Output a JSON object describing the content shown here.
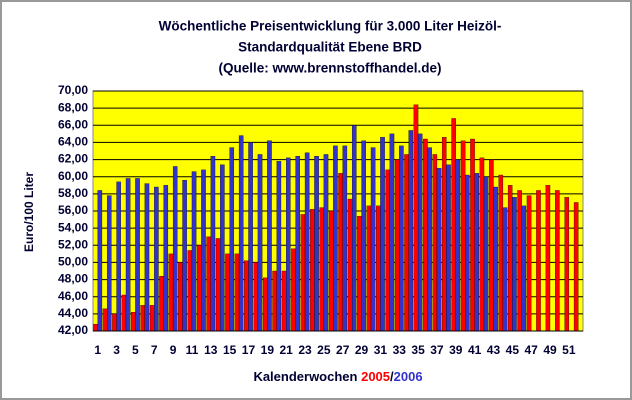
{
  "chart_data": {
    "type": "bar",
    "title_lines": [
      "Wöchentliche Preisentwicklung für 3.000 Liter Heizöl-",
      "Standardqualität Ebene BRD",
      "(Quelle: www.brennstoffhandel.de)"
    ],
    "ylabel": "Euro/100 Liter",
    "xlabel": "Kalenderwochen",
    "series_separator": "/",
    "categories": [
      "1",
      null,
      "3",
      null,
      "5",
      null,
      "7",
      null,
      "9",
      null,
      "11",
      null,
      "13",
      null,
      "15",
      null,
      "17",
      null,
      "19",
      null,
      "21",
      null,
      "23",
      null,
      "25",
      null,
      "27",
      null,
      "29",
      null,
      "31",
      null,
      "33",
      null,
      "35",
      null,
      "37",
      null,
      "39",
      null,
      "41",
      null,
      "43",
      null,
      "45",
      null,
      "47",
      null,
      "49",
      null,
      "51",
      null
    ],
    "series": [
      {
        "name": "2005",
        "color": "#ff0000",
        "values": [
          42.8,
          44.6,
          44.0,
          46.2,
          44.2,
          45.0,
          45.0,
          48.4,
          51.0,
          50.0,
          51.4,
          52.0,
          53.0,
          52.8,
          51.0,
          51.0,
          50.2,
          50.0,
          48.2,
          49.0,
          49.0,
          51.6,
          55.6,
          56.2,
          56.4,
          56.0,
          60.4,
          57.4,
          55.4,
          56.6,
          56.6,
          60.8,
          62.0,
          62.6,
          68.4,
          64.4,
          62.6,
          64.6,
          66.8,
          64.2,
          64.4,
          62.2,
          62.0,
          60.2,
          59.0,
          58.4,
          57.8,
          58.4,
          59.0,
          58.4,
          57.6,
          57.0
        ]
      },
      {
        "name": "2006",
        "color": "#3333cc",
        "values": [
          58.4,
          57.8,
          59.4,
          59.8,
          59.8,
          59.2,
          58.8,
          59.0,
          61.2,
          59.6,
          60.6,
          60.8,
          62.4,
          61.4,
          63.4,
          64.8,
          64.0,
          62.6,
          64.2,
          61.8,
          62.2,
          62.4,
          62.8,
          62.4,
          62.6,
          63.6,
          63.6,
          66.0,
          64.2,
          63.4,
          64.6,
          65.0,
          63.6,
          65.4,
          65.0,
          63.4,
          61.0,
          61.4,
          62.0,
          60.2,
          60.4,
          60.0,
          58.8,
          56.4,
          57.6,
          56.6,
          null,
          null,
          null,
          null,
          null,
          null
        ]
      }
    ],
    "ylim": [
      42,
      70
    ],
    "yticks": [
      {
        "value": 42,
        "label": "42,00"
      },
      {
        "value": 44,
        "label": "44,00"
      },
      {
        "value": 46,
        "label": "46,00"
      },
      {
        "value": 48,
        "label": "48,00"
      },
      {
        "value": 50,
        "label": "50,00"
      },
      {
        "value": 52,
        "label": "52,00"
      },
      {
        "value": 54,
        "label": "54,00"
      },
      {
        "value": 56,
        "label": "56,00"
      },
      {
        "value": 58,
        "label": "58,00"
      },
      {
        "value": 60,
        "label": "60,00"
      },
      {
        "value": 62,
        "label": "62,00"
      },
      {
        "value": 64,
        "label": "64,00"
      },
      {
        "value": 66,
        "label": "66,00"
      },
      {
        "value": 68,
        "label": "68,00"
      },
      {
        "value": 70,
        "label": "70,00"
      }
    ],
    "grid": true,
    "plot_background": "#ffff00"
  }
}
